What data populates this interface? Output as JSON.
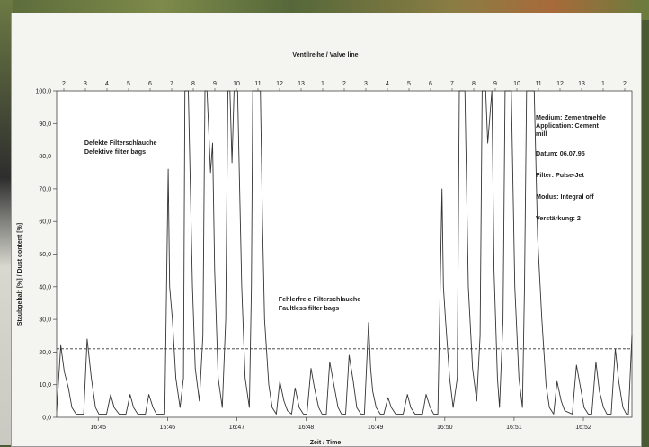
{
  "chart_data": {
    "type": "line",
    "title": "Ventilreihe / Valve line",
    "xlabel": "Zeit / Time",
    "ylabel": "Staubgehalt [%] / Dust content [%]",
    "ylim": [
      0,
      100
    ],
    "y_ticks": [
      "0,0",
      "10,0",
      "20,0",
      "30,0",
      "40,0",
      "50,0",
      "60,0",
      "70,0",
      "80,0",
      "90,0",
      "100,0"
    ],
    "x_ticks": [
      "16:45",
      "16:46",
      "16:47",
      "16:48",
      "16:49",
      "16:50",
      "16:51",
      "16:52"
    ],
    "x_unit": "minutes",
    "xlim": [
      0,
      8.3
    ],
    "valve_labels": [
      "2",
      "3",
      "4",
      "5",
      "6",
      "7",
      "8",
      "9",
      "10",
      "11",
      "12",
      "13",
      "1",
      "2",
      "3",
      "4",
      "5",
      "6",
      "7",
      "8",
      "9",
      "10",
      "11",
      "12",
      "13",
      "1",
      "2"
    ],
    "grid": false,
    "threshold": {
      "value": 21,
      "style": "dashed"
    },
    "series": [
      {
        "points": [
          [
            0.0,
            2
          ],
          [
            0.06,
            22
          ],
          [
            0.11,
            14
          ],
          [
            0.17,
            9
          ],
          [
            0.22,
            3
          ],
          [
            0.28,
            1
          ],
          [
            0.39,
            1
          ],
          [
            0.44,
            24
          ],
          [
            0.5,
            12
          ],
          [
            0.56,
            3
          ],
          [
            0.61,
            1
          ],
          [
            0.72,
            1
          ],
          [
            0.78,
            7
          ],
          [
            0.83,
            3
          ],
          [
            0.9,
            1
          ],
          [
            1.0,
            1
          ],
          [
            1.06,
            7
          ],
          [
            1.11,
            3
          ],
          [
            1.17,
            1
          ],
          [
            1.28,
            1
          ],
          [
            1.33,
            7
          ],
          [
            1.39,
            3
          ],
          [
            1.44,
            1
          ],
          [
            1.56,
            1
          ],
          [
            1.61,
            76
          ],
          [
            1.63,
            40
          ],
          [
            1.67,
            30
          ],
          [
            1.72,
            12
          ],
          [
            1.78,
            3
          ],
          [
            1.83,
            12
          ],
          [
            1.85,
            100
          ],
          [
            1.9,
            100
          ],
          [
            1.96,
            40
          ],
          [
            2.0,
            15
          ],
          [
            2.06,
            5
          ],
          [
            2.11,
            25
          ],
          [
            2.14,
            100
          ],
          [
            2.17,
            100
          ],
          [
            2.22,
            75
          ],
          [
            2.25,
            84
          ],
          [
            2.28,
            45
          ],
          [
            2.33,
            12
          ],
          [
            2.39,
            3
          ],
          [
            2.44,
            30
          ],
          [
            2.47,
            100
          ],
          [
            2.5,
            100
          ],
          [
            2.53,
            78
          ],
          [
            2.56,
            100
          ],
          [
            2.61,
            100
          ],
          [
            2.67,
            40
          ],
          [
            2.72,
            12
          ],
          [
            2.78,
            3
          ],
          [
            2.81,
            40
          ],
          [
            2.83,
            100
          ],
          [
            2.94,
            100
          ],
          [
            2.97,
            60
          ],
          [
            3.0,
            30
          ],
          [
            3.06,
            10
          ],
          [
            3.11,
            3
          ],
          [
            3.17,
            1
          ],
          [
            3.22,
            11
          ],
          [
            3.28,
            5
          ],
          [
            3.33,
            2
          ],
          [
            3.39,
            1
          ],
          [
            3.44,
            9
          ],
          [
            3.5,
            3
          ],
          [
            3.56,
            1
          ],
          [
            3.61,
            1
          ],
          [
            3.67,
            15
          ],
          [
            3.72,
            9
          ],
          [
            3.78,
            3
          ],
          [
            3.83,
            1
          ],
          [
            3.89,
            1
          ],
          [
            3.94,
            17
          ],
          [
            4.0,
            10
          ],
          [
            4.06,
            3
          ],
          [
            4.11,
            1
          ],
          [
            4.17,
            1
          ],
          [
            4.22,
            19
          ],
          [
            4.28,
            11
          ],
          [
            4.33,
            3
          ],
          [
            4.39,
            1
          ],
          [
            4.44,
            1
          ],
          [
            4.5,
            29
          ],
          [
            4.53,
            15
          ],
          [
            4.56,
            8
          ],
          [
            4.61,
            3
          ],
          [
            4.67,
            1
          ],
          [
            4.72,
            1
          ],
          [
            4.78,
            6
          ],
          [
            4.83,
            3
          ],
          [
            4.89,
            1
          ],
          [
            5.0,
            1
          ],
          [
            5.06,
            7
          ],
          [
            5.11,
            3
          ],
          [
            5.17,
            1
          ],
          [
            5.28,
            1
          ],
          [
            5.33,
            7
          ],
          [
            5.39,
            3
          ],
          [
            5.44,
            1
          ],
          [
            5.5,
            1
          ],
          [
            5.56,
            70
          ],
          [
            5.58,
            40
          ],
          [
            5.61,
            30
          ],
          [
            5.67,
            12
          ],
          [
            5.72,
            3
          ],
          [
            5.78,
            12
          ],
          [
            5.81,
            100
          ],
          [
            5.89,
            100
          ],
          [
            5.94,
            40
          ],
          [
            6.0,
            15
          ],
          [
            6.06,
            5
          ],
          [
            6.11,
            25
          ],
          [
            6.14,
            100
          ],
          [
            6.19,
            100
          ],
          [
            6.22,
            84
          ],
          [
            6.28,
            100
          ],
          [
            6.31,
            45
          ],
          [
            6.36,
            12
          ],
          [
            6.39,
            3
          ],
          [
            6.44,
            30
          ],
          [
            6.47,
            100
          ],
          [
            6.56,
            100
          ],
          [
            6.61,
            40
          ],
          [
            6.67,
            12
          ],
          [
            6.72,
            3
          ],
          [
            6.75,
            40
          ],
          [
            6.78,
            100
          ],
          [
            6.89,
            100
          ],
          [
            6.94,
            55
          ],
          [
            7.0,
            30
          ],
          [
            7.06,
            10
          ],
          [
            7.11,
            3
          ],
          [
            7.17,
            1
          ],
          [
            7.22,
            11
          ],
          [
            7.28,
            5
          ],
          [
            7.33,
            2
          ],
          [
            7.44,
            1
          ],
          [
            7.5,
            16
          ],
          [
            7.56,
            9
          ],
          [
            7.61,
            3
          ],
          [
            7.67,
            1
          ],
          [
            7.72,
            1
          ],
          [
            7.78,
            17
          ],
          [
            7.83,
            8
          ],
          [
            7.89,
            3
          ],
          [
            7.94,
            1
          ],
          [
            8.0,
            1
          ],
          [
            8.06,
            21
          ],
          [
            8.11,
            11
          ],
          [
            8.17,
            3
          ],
          [
            8.22,
            1
          ],
          [
            8.25,
            1
          ],
          [
            8.3,
            25
          ]
        ]
      }
    ],
    "annotations": [
      {
        "lines": [
          "Defekte Filterschlauche",
          "Defektive filter bags"
        ],
        "x": 0.4,
        "y": 83.5
      },
      {
        "lines": [
          "Fehlerfreie Filterschlauche",
          "Faultless filter bags"
        ],
        "x": 3.2,
        "y": 35.5
      }
    ],
    "info_box": [
      "Medium: Zementmehle",
      "Application: Cement",
      "mill",
      "Datum: 06.07.95",
      "Filter: Pulse-Jet",
      "Modus: Integral off",
      "Verstärkung: 2"
    ]
  }
}
